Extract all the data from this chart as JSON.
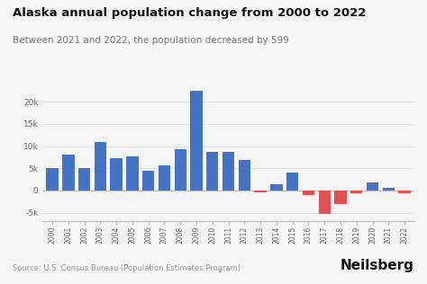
{
  "title": "Alaska annual population change from 2000 to 2022",
  "subtitle": "Between 2021 and 2022, the population decreased by 599",
  "source": "Source: U.S. Census Bureau (Population Estimates Program)",
  "years": [
    2000,
    2001,
    2002,
    2003,
    2004,
    2005,
    2006,
    2007,
    2008,
    2009,
    2010,
    2011,
    2012,
    2013,
    2014,
    2015,
    2016,
    2017,
    2018,
    2019,
    2020,
    2021,
    2022
  ],
  "values": [
    5000,
    8000,
    5100,
    11000,
    7300,
    7700,
    4500,
    5700,
    9200,
    22500,
    8700,
    8600,
    6800,
    -400,
    1500,
    4000,
    -1000,
    -5200,
    -3000,
    -700,
    1800,
    500,
    -599
  ],
  "bar_color_positive": "#4472C4",
  "bar_color_negative": "#E05252",
  "background_color": "#f5f5f5",
  "ylim": [
    -7000,
    25000
  ],
  "yticks": [
    -5000,
    0,
    5000,
    10000,
    15000,
    20000
  ],
  "title_fontsize": 9.5,
  "subtitle_fontsize": 7.5,
  "source_fontsize": 6,
  "brand_fontsize": 11
}
